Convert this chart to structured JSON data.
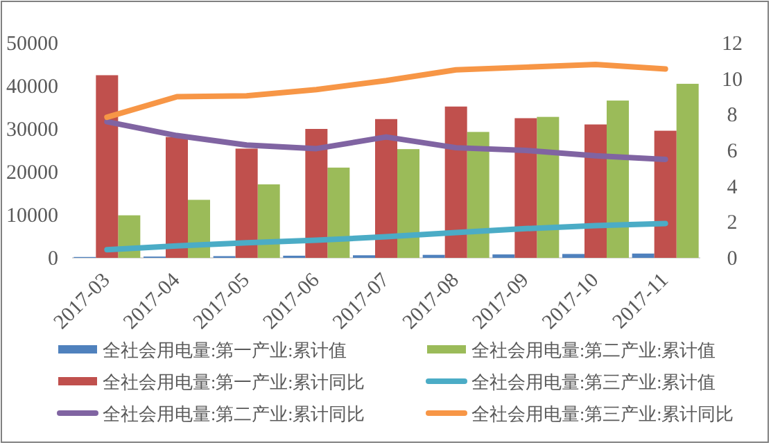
{
  "chart_data": {
    "type": "bar",
    "categories": [
      "2017-03",
      "2017-04",
      "2017-05",
      "2017-06",
      "2017-07",
      "2017-08",
      "2017-09",
      "2017-10",
      "2017-11"
    ],
    "ylim": [
      0,
      50000
    ],
    "yticks": [
      0,
      10000,
      20000,
      30000,
      40000,
      50000
    ],
    "y2lim": [
      0,
      12
    ],
    "y2ticks": [
      0,
      2,
      4,
      6,
      8,
      10,
      12
    ],
    "legend": "bottom",
    "grid": false,
    "series": [
      {
        "name": "全社会用电量:第一产业:累计值",
        "color": "#4f81bd",
        "values": [
          200,
          300,
          400,
          500,
          600,
          700,
          800,
          900,
          1000
        ]
      },
      {
        "name": "全社会用电量:第二产业:累计值",
        "color": "#9bbb59",
        "values": [
          9900,
          13500,
          17100,
          21000,
          25300,
          29300,
          32800,
          36600,
          40500
        ]
      },
      {
        "name": "全社会用电量:第一产业:累计同比",
        "axis": "y2",
        "color": "#c0504d",
        "values": [
          10.2,
          6.75,
          6.1,
          7.2,
          7.75,
          8.45,
          7.8,
          7.45,
          7.1
        ]
      },
      {
        "name": "全社会用电量:第三产业:累计值",
        "type": "line",
        "color": "#4bacc6",
        "values": [
          1900,
          2800,
          3500,
          4100,
          4900,
          5900,
          6800,
          7500,
          8000
        ]
      },
      {
        "name": "全社会用电量:第二产业:累计同比",
        "type": "line",
        "axis": "y2",
        "color": "#8064a2",
        "values": [
          7.6,
          6.83,
          6.3,
          6.1,
          6.75,
          6.15,
          6.0,
          5.7,
          5.5
        ]
      },
      {
        "name": "全社会用电量:第三产业:累计同比",
        "type": "line",
        "axis": "y2",
        "color": "#f79646",
        "values": [
          7.85,
          9.0,
          9.05,
          9.4,
          9.9,
          10.5,
          10.65,
          10.8,
          10.55
        ]
      }
    ]
  }
}
